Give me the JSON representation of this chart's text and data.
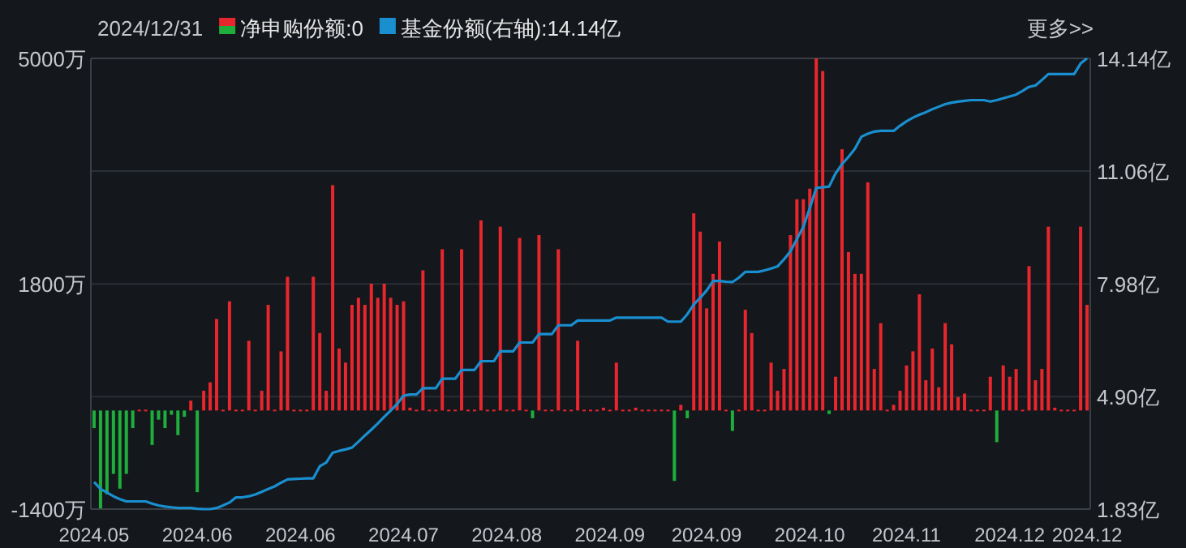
{
  "chart_data": {
    "type": "bar",
    "annotations": [
      "2024/12/31",
      "更多>>"
    ],
    "categories": [
      "2024.05",
      null,
      null,
      null,
      null,
      null,
      null,
      null,
      null,
      null,
      null,
      null,
      null,
      null,
      null,
      null,
      "2024.06",
      null,
      null,
      null,
      null,
      null,
      null,
      null,
      null,
      null,
      null,
      null,
      null,
      null,
      null,
      null,
      "2024.06",
      null,
      null,
      null,
      null,
      null,
      null,
      null,
      null,
      null,
      null,
      null,
      null,
      null,
      null,
      null,
      "2024.07",
      null,
      null,
      null,
      null,
      null,
      null,
      null,
      null,
      null,
      null,
      null,
      null,
      null,
      null,
      null,
      "2024.08",
      null,
      null,
      null,
      null,
      null,
      null,
      null,
      null,
      null,
      null,
      null,
      null,
      null,
      null,
      null,
      "2024.09",
      null,
      null,
      null,
      null,
      null,
      null,
      null,
      null,
      null,
      null,
      null,
      null,
      null,
      null,
      "2024.09",
      null,
      null,
      null,
      null,
      null,
      null,
      null,
      null,
      null,
      null,
      null,
      null,
      null,
      null,
      null,
      "2024.10",
      null,
      null,
      null,
      null,
      null,
      null,
      null,
      null,
      null,
      null,
      null,
      null,
      null,
      null,
      "2024.11",
      null,
      null,
      null,
      null,
      null,
      null,
      null,
      null,
      null,
      null,
      null,
      null,
      null,
      null,
      null,
      "2024.12",
      null,
      null,
      null,
      null,
      null,
      null,
      null,
      null,
      null,
      null,
      null,
      "2024.12"
    ],
    "series": [
      {
        "name": "净申购份额:0",
        "values": [
          -250,
          -1390,
          -1190,
          -900,
          -1110,
          -900,
          -250,
          0,
          0,
          -490,
          -130,
          -250,
          -60,
          -350,
          -90,
          140,
          -1160,
          280,
          400,
          1300,
          0,
          1550,
          0,
          0,
          990,
          0,
          280,
          1500,
          0,
          840,
          1900,
          0,
          0,
          0,
          1900,
          1100,
          280,
          3200,
          880,
          680,
          1500,
          1600,
          1500,
          1800,
          1600,
          1800,
          1600,
          1500,
          1550,
          40,
          0,
          1990,
          0,
          0,
          2290,
          0,
          0,
          2290,
          0,
          0,
          2700,
          0,
          0,
          2610,
          0,
          0,
          2450,
          0,
          -110,
          2490,
          0,
          0,
          2290,
          0,
          0,
          990,
          0,
          0,
          0,
          40,
          0,
          680,
          0,
          0,
          40,
          0,
          0,
          0,
          0,
          0,
          -1000,
          80,
          -110,
          2800,
          2540,
          1450,
          1940,
          2400,
          0,
          -290,
          0,
          1430,
          1100,
          0,
          0,
          680,
          280,
          590,
          2490,
          3000,
          3000,
          3150,
          5000,
          4820,
          -50,
          480,
          3710,
          2250,
          1940,
          1940,
          3240,
          590,
          1240,
          0,
          80,
          280,
          640,
          840,
          1650,
          430,
          880,
          330,
          1240,
          940,
          190,
          240,
          0,
          0,
          0,
          480,
          -450,
          640,
          480,
          590,
          0,
          2050,
          430,
          590,
          2610,
          40,
          0,
          0,
          0,
          2610,
          1500
        ],
        "colors": [
          "#1fae3c",
          "#1fae3c",
          "#1fae3c",
          "#1fae3c",
          "#1fae3c",
          "#1fae3c",
          "#1fae3c",
          "#e8262d",
          "#e8262d",
          "#1fae3c",
          "#1fae3c",
          "#1fae3c",
          "#1fae3c",
          "#1fae3c",
          "#1fae3c",
          "#e8262d",
          "#1fae3c",
          "#e8262d",
          "#e8262d",
          "#e8262d",
          "#e8262d",
          "#e8262d",
          "#e8262d",
          "#e8262d",
          "#e8262d",
          "#e8262d",
          "#e8262d",
          "#e8262d",
          "#e8262d",
          "#e8262d",
          "#e8262d",
          "#e8262d",
          "#e8262d",
          "#e8262d",
          "#e8262d",
          "#e8262d",
          "#e8262d",
          "#e8262d",
          "#e8262d",
          "#e8262d",
          "#e8262d",
          "#e8262d",
          "#e8262d",
          "#e8262d",
          "#e8262d",
          "#e8262d",
          "#e8262d",
          "#e8262d",
          "#e8262d",
          "#e8262d",
          "#e8262d",
          "#e8262d",
          "#e8262d",
          "#e8262d",
          "#e8262d",
          "#e8262d",
          "#e8262d",
          "#e8262d",
          "#e8262d",
          "#e8262d",
          "#e8262d",
          "#e8262d",
          "#e8262d",
          "#e8262d",
          "#e8262d",
          "#e8262d",
          "#e8262d",
          "#e8262d",
          "#1fae3c",
          "#e8262d",
          "#e8262d",
          "#e8262d",
          "#e8262d",
          "#e8262d",
          "#e8262d",
          "#e8262d",
          "#e8262d",
          "#e8262d",
          "#e8262d",
          "#e8262d",
          "#e8262d",
          "#e8262d",
          "#e8262d",
          "#e8262d",
          "#e8262d",
          "#e8262d",
          "#e8262d",
          "#e8262d",
          "#e8262d",
          "#e8262d",
          "#1fae3c",
          "#e8262d",
          "#1fae3c",
          "#e8262d",
          "#e8262d",
          "#e8262d",
          "#e8262d",
          "#e8262d",
          "#e8262d",
          "#1fae3c",
          "#e8262d",
          "#e8262d",
          "#e8262d",
          "#e8262d",
          "#e8262d",
          "#e8262d",
          "#e8262d",
          "#e8262d",
          "#e8262d",
          "#e8262d",
          "#e8262d",
          "#e8262d",
          "#e8262d",
          "#e8262d",
          "#1fae3c",
          "#e8262d",
          "#e8262d",
          "#e8262d",
          "#e8262d",
          "#e8262d",
          "#e8262d",
          "#e8262d",
          "#e8262d",
          "#e8262d",
          "#e8262d",
          "#e8262d",
          "#e8262d",
          "#e8262d",
          "#e8262d",
          "#e8262d",
          "#e8262d",
          "#e8262d",
          "#e8262d",
          "#e8262d",
          "#e8262d",
          "#e8262d",
          "#e8262d",
          "#e8262d",
          "#e8262d",
          "#e8262d",
          "#1fae3c",
          "#e8262d",
          "#e8262d",
          "#e8262d",
          "#e8262d",
          "#e8262d",
          "#e8262d",
          "#e8262d",
          "#e8262d",
          "#e8262d",
          "#e8262d",
          "#e8262d",
          "#e8262d",
          "#e8262d",
          "#e8262d"
        ]
      },
      {
        "name": "基金份额(右轴):14.14亿",
        "type": "line",
        "axis": "y2",
        "color": "#1a8fd0",
        "values": [
          2.57,
          2.38,
          2.28,
          2.18,
          2.1,
          2.04,
          2.04,
          2.04,
          2.04,
          1.98,
          1.93,
          1.9,
          1.88,
          1.86,
          1.86,
          1.86,
          1.84,
          1.83,
          1.83,
          1.86,
          1.93,
          2.01,
          2.15,
          2.15,
          2.18,
          2.23,
          2.3,
          2.38,
          2.45,
          2.55,
          2.64,
          2.65,
          2.66,
          2.67,
          2.67,
          3.0,
          3.1,
          3.37,
          3.42,
          3.46,
          3.51,
          3.67,
          3.84,
          4.0,
          4.17,
          4.35,
          4.52,
          4.7,
          4.93,
          4.96,
          4.96,
          5.13,
          5.13,
          5.13,
          5.39,
          5.39,
          5.39,
          5.63,
          5.63,
          5.63,
          5.87,
          5.87,
          5.87,
          6.14,
          6.14,
          6.14,
          6.38,
          6.38,
          6.38,
          6.61,
          6.61,
          6.61,
          6.85,
          6.85,
          6.85,
          6.98,
          6.98,
          6.98,
          6.98,
          6.98,
          6.98,
          7.06,
          7.06,
          7.06,
          7.06,
          7.06,
          7.06,
          7.06,
          7.06,
          6.95,
          6.95,
          6.95,
          7.15,
          7.42,
          7.6,
          7.8,
          8.06,
          8.06,
          8.04,
          8.03,
          8.15,
          8.31,
          8.31,
          8.31,
          8.35,
          8.4,
          8.46,
          8.65,
          8.87,
          9.2,
          9.54,
          10.05,
          10.6,
          10.62,
          10.64,
          11.0,
          11.25,
          11.45,
          11.67,
          12.0,
          12.08,
          12.14,
          12.16,
          12.16,
          12.16,
          12.3,
          12.42,
          12.52,
          12.6,
          12.67,
          12.75,
          12.82,
          12.89,
          12.93,
          12.96,
          12.98,
          13.0,
          13.0,
          13.0,
          12.96,
          13.0,
          13.05,
          13.1,
          13.15,
          13.25,
          13.36,
          13.4,
          13.55,
          13.71,
          13.71,
          13.71,
          13.71,
          13.71,
          14.0,
          14.14
        ]
      }
    ],
    "ylim": [
      -1400,
      5000
    ],
    "yticks": [
      {
        "value": 5000,
        "label": "5000万"
      },
      {
        "value": 1800,
        "label": "1800万"
      },
      {
        "value": -1400,
        "label": "-1400万"
      }
    ],
    "y2lim": [
      1.83,
      14.14
    ],
    "y2ticks": [
      {
        "value": 14.14,
        "label": "14.14亿"
      },
      {
        "value": 11.06,
        "label": "11.06亿"
      },
      {
        "value": 7.98,
        "label": "7.98亿"
      },
      {
        "value": 4.9,
        "label": "4.90亿"
      },
      {
        "value": 1.83,
        "label": "1.83亿"
      }
    ],
    "grid": "y",
    "legend": "top left"
  }
}
